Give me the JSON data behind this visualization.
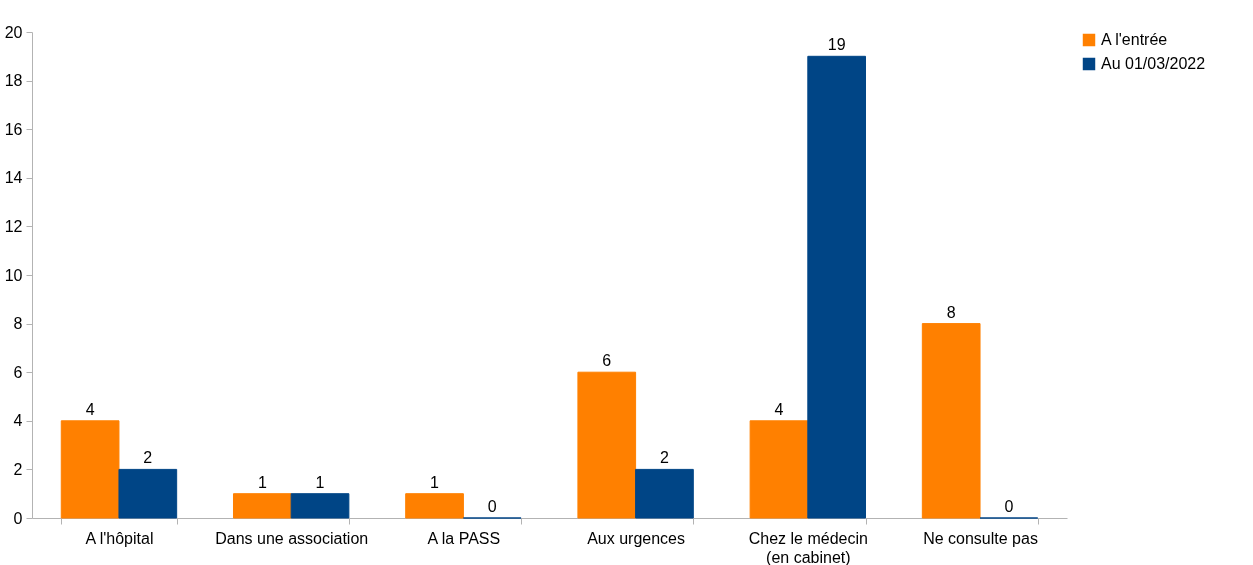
{
  "chart_data": {
    "type": "bar",
    "categories": [
      "A l'hôpital",
      "Dans une association",
      "A la PASS",
      "Aux urgences",
      "Chez le médecin\n(en cabinet)",
      "Ne consulte pas"
    ],
    "series": [
      {
        "name": "A l'entrée",
        "color": "#ff8000",
        "values": [
          4,
          1,
          1,
          6,
          4,
          8
        ]
      },
      {
        "name": "Au 01/03/2022",
        "color": "#004586",
        "values": [
          2,
          1,
          0,
          2,
          19,
          0
        ]
      }
    ],
    "ylim": [
      0,
      20
    ],
    "yticks": [
      0,
      2,
      4,
      6,
      8,
      10,
      12,
      14,
      16,
      18,
      20
    ],
    "data_labels": true,
    "legend": "right",
    "grid": false
  }
}
